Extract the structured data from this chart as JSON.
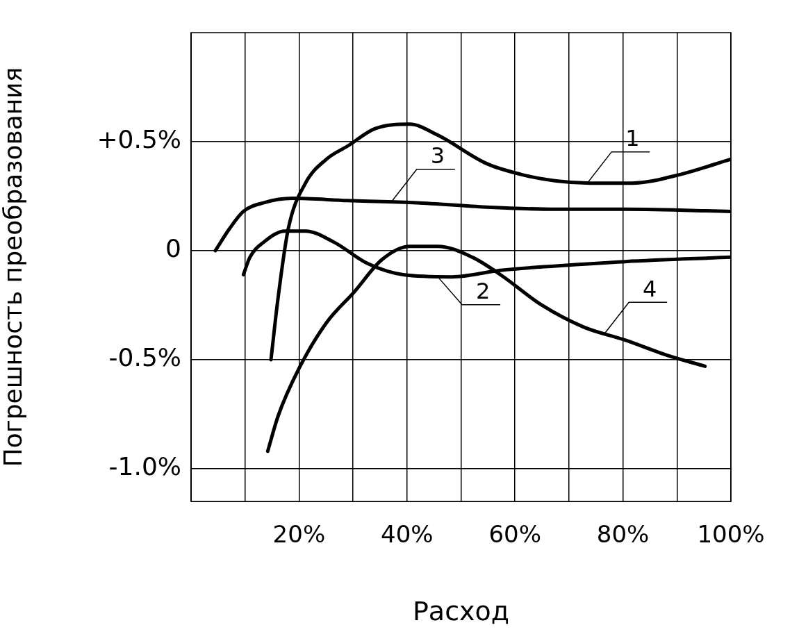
{
  "chart_data": {
    "type": "line",
    "xlabel": "Расход",
    "ylabel": "Погрешность преобразования",
    "xlim": [
      0,
      100
    ],
    "ylim": [
      -1.15,
      1.0
    ],
    "xticks": [
      {
        "value": 0,
        "label": null
      },
      {
        "value": 10,
        "label": null
      },
      {
        "value": 20,
        "label": "20%"
      },
      {
        "value": 30,
        "label": null
      },
      {
        "value": 40,
        "label": "40%"
      },
      {
        "value": 50,
        "label": null
      },
      {
        "value": 60,
        "label": "60%"
      },
      {
        "value": 70,
        "label": null
      },
      {
        "value": 80,
        "label": "80%"
      },
      {
        "value": 90,
        "label": null
      },
      {
        "value": 100,
        "label": "100%"
      }
    ],
    "yticks": [
      {
        "value": -1.0,
        "label": "-1.0%"
      },
      {
        "value": -0.5,
        "label": "-0.5%"
      },
      0,
      {
        "value": 0.5,
        "label": "+0.5%"
      }
    ],
    "grid": true,
    "legend": false,
    "marker": "none",
    "line_style": "solid",
    "series": [
      {
        "color": "#000000",
        "x": [
          14.8,
          16.1,
          18,
          21.2,
          25.1,
          29,
          34.1,
          40.5,
          45.7,
          54.7,
          61.1,
          67.6,
          74,
          81.7,
          90.7,
          100
        ],
        "values": [
          -0.5,
          -0.22,
          0.1,
          0.31,
          0.42,
          0.48,
          0.56,
          0.58,
          0.53,
          0.4,
          0.35,
          0.32,
          0.31,
          0.31,
          0.35,
          0.42
        ]
      },
      {
        "color": "#000000",
        "x": [
          4.5,
          7.1,
          9.7,
          13.5,
          18.7,
          29,
          41.8,
          54.7,
          67.6,
          80.4,
          100
        ],
        "values": [
          0,
          0.1,
          0.18,
          0.22,
          0.24,
          0.23,
          0.22,
          0.2,
          0.19,
          0.19,
          0.18
        ]
      },
      {
        "color": "#000000",
        "x": [
          9.7,
          10.9,
          13.5,
          17.4,
          21.2,
          26.4,
          32.8,
          39.3,
          48.3,
          57.3,
          67.6,
          80.4,
          100
        ],
        "values": [
          -0.11,
          -0.03,
          0.04,
          0.09,
          0.09,
          0.04,
          -0.06,
          -0.11,
          -0.12,
          -0.09,
          -0.07,
          -0.05,
          -0.03
        ]
      },
      {
        "color": "#000000",
        "x": [
          14.2,
          16.1,
          20,
          25.1,
          30.2,
          35.4,
          40.5,
          45.7,
          52.1,
          57.3,
          65,
          72.7,
          80.4,
          88.2,
          95.2
        ],
        "values": [
          -0.92,
          -0.76,
          -0.54,
          -0.33,
          -0.19,
          -0.04,
          0.02,
          0.02,
          -0.03,
          -0.11,
          -0.25,
          -0.35,
          -0.41,
          -0.48,
          -0.53
        ]
      }
    ],
    "annotations": [
      {
        "text": "1",
        "x": 73.4,
        "y": 0.31
      },
      {
        "text": "3",
        "x": 37.3,
        "y": 0.23
      },
      {
        "text": "2",
        "x": 45.7,
        "y": -0.12
      },
      {
        "text": "4",
        "x": 76.6,
        "y": -0.38
      }
    ]
  }
}
